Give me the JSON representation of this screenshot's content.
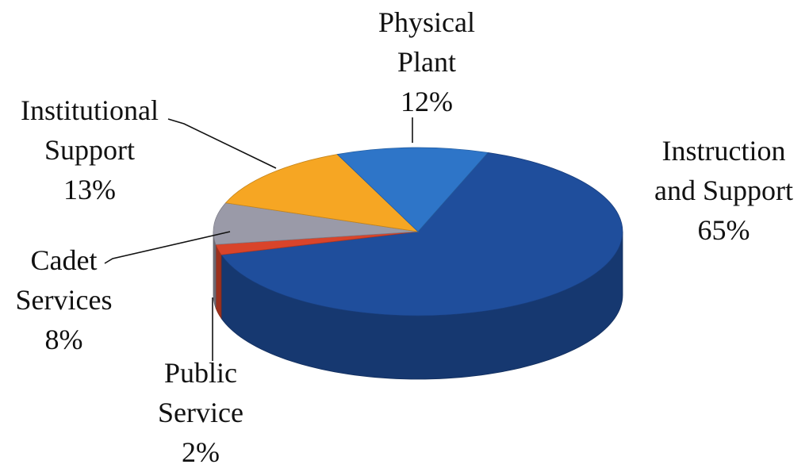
{
  "chart_data": {
    "type": "pie",
    "categories": [
      "Instruction and Support",
      "Public Service",
      "Cadet Services",
      "Institutional Support",
      "Physical Plant"
    ],
    "values": [
      65,
      2,
      8,
      13,
      12
    ],
    "value_labels": [
      "65%",
      "2%",
      "8%",
      "13%",
      "12%"
    ],
    "colors": [
      "#1f4e9c",
      "#d9442a",
      "#9a9aa8",
      "#f6a623",
      "#2e75c8"
    ]
  }
}
